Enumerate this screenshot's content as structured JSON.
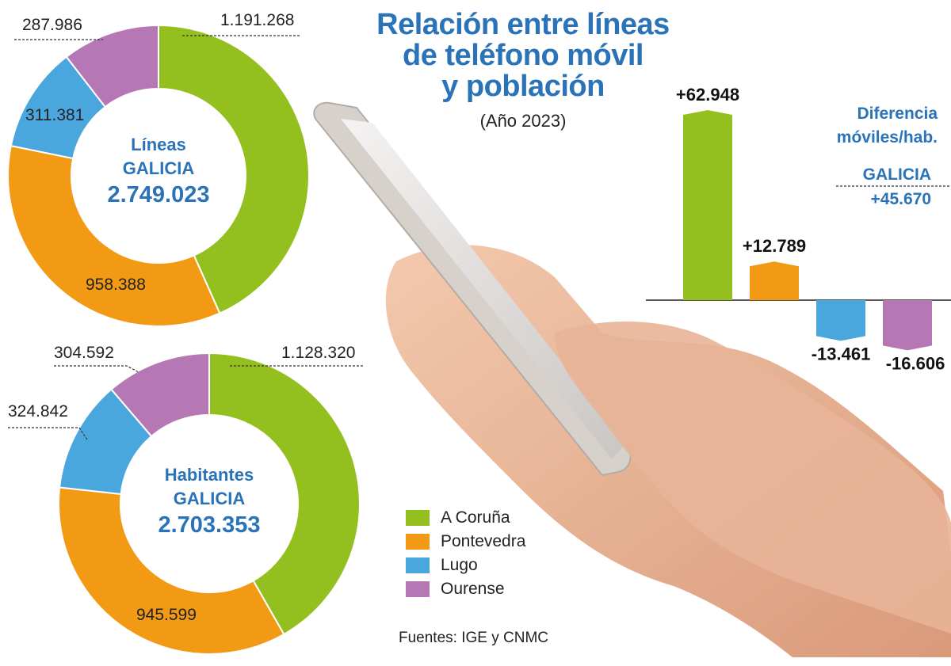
{
  "title_lines": [
    "Relación entre líneas",
    "de teléfono móvil",
    "y población"
  ],
  "subtitle": "(Año 2023)",
  "source": "Fuentes: IGE y CNMC",
  "colors": {
    "A Coruña": "#93c01f",
    "Pontevedra": "#f29a14",
    "Lugo": "#4aa7de",
    "Ourense": "#b677b5",
    "title_blue": "#2a73b8"
  },
  "legend": [
    "A Coruña",
    "Pontevedra",
    "Lugo",
    "Ourense"
  ],
  "chart_data": [
    {
      "type": "pie",
      "center_label": [
        "Líneas",
        "GALICIA"
      ],
      "center_value": "2.749.023",
      "categories": [
        "A Coruña",
        "Pontevedra",
        "Lugo",
        "Ourense"
      ],
      "values": [
        1191268,
        958388,
        311381,
        287986
      ],
      "value_labels": [
        "1.191.268",
        "958.388",
        "311.381",
        "287.986"
      ]
    },
    {
      "type": "pie",
      "center_label": [
        "Habitantes",
        "GALICIA"
      ],
      "center_value": "2.703.353",
      "categories": [
        "A Coruña",
        "Pontevedra",
        "Lugo",
        "Ourense"
      ],
      "values": [
        1128320,
        945599,
        324842,
        304592
      ],
      "value_labels": [
        "1.128.320",
        "945.599",
        "324.842",
        "304.592"
      ]
    },
    {
      "type": "bar",
      "title": [
        "Diferencia",
        "móviles/hab."
      ],
      "total_label": "GALICIA",
      "total_value": "+45.670",
      "categories": [
        "A Coruña",
        "Pontevedra",
        "Lugo",
        "Ourense"
      ],
      "values": [
        62948,
        12789,
        -13461,
        -16606
      ],
      "value_labels": [
        "+62.948",
        "+12.789",
        "-13.461",
        "-16.606"
      ]
    }
  ]
}
